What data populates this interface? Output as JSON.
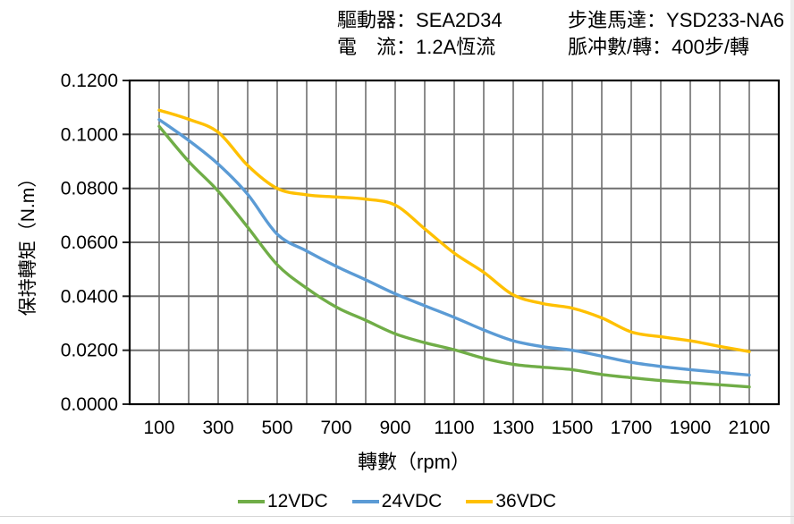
{
  "header": {
    "fields": [
      {
        "label": "驅動器：",
        "value": "SEA2D34"
      },
      {
        "label": "電　流：",
        "value": "1.2A恆流"
      },
      {
        "label": "步進馬達：",
        "value": "YSD233-NA6"
      },
      {
        "label": "脈冲數/轉：",
        "value": "400步/轉"
      }
    ]
  },
  "chart_data": {
    "type": "line",
    "title": "",
    "xlabel": "轉數（rpm）",
    "ylabel": "保持轉矩（N.m）",
    "grid": true,
    "legend_position": "bottom",
    "x_axis": {
      "min": 0,
      "max": 2200,
      "grid_step": 100,
      "tick_values": [
        100,
        300,
        500,
        700,
        900,
        1100,
        1300,
        1500,
        1700,
        1900,
        2100
      ]
    },
    "y_axis": {
      "min": 0,
      "max": 0.12,
      "grid_step": 0.02,
      "tick_labels": [
        "0.0000",
        "0.0200",
        "0.0400",
        "0.0600",
        "0.0800",
        "0.1000",
        "0.1200"
      ]
    },
    "x": [
      100,
      200,
      300,
      400,
      500,
      600,
      700,
      800,
      900,
      1000,
      1100,
      1200,
      1300,
      1400,
      1500,
      1600,
      1700,
      1800,
      1900,
      2000,
      2100
    ],
    "series": [
      {
        "name": "12VDC",
        "color": "#70AD47",
        "values": [
          0.103,
          0.09,
          0.079,
          0.0656,
          0.0517,
          0.043,
          0.036,
          0.0311,
          0.0261,
          0.0228,
          0.0202,
          0.017,
          0.0148,
          0.0137,
          0.0128,
          0.011,
          0.0098,
          0.0088,
          0.008,
          0.0072,
          0.0064
        ]
      },
      {
        "name": "24VDC",
        "color": "#5B9BD5",
        "values": [
          0.1055,
          0.0978,
          0.089,
          0.0778,
          0.063,
          0.0568,
          0.0511,
          0.0461,
          0.0409,
          0.0365,
          0.0322,
          0.0275,
          0.0235,
          0.0213,
          0.02,
          0.0178,
          0.0155,
          0.014,
          0.0128,
          0.0118,
          0.0108
        ]
      },
      {
        "name": "36VDC",
        "color": "#FFC000",
        "values": [
          0.109,
          0.1056,
          0.1008,
          0.0885,
          0.08,
          0.0776,
          0.0768,
          0.076,
          0.0738,
          0.065,
          0.056,
          0.0489,
          0.0405,
          0.0373,
          0.0356,
          0.032,
          0.0268,
          0.025,
          0.0235,
          0.0214,
          0.0195
        ]
      }
    ]
  }
}
